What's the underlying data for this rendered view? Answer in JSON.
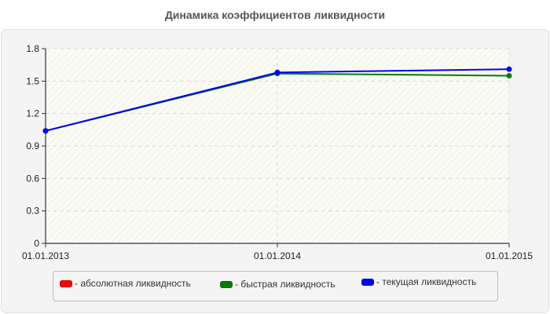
{
  "chart_data": {
    "type": "line",
    "title": "Динамика коэффициентов ликвидности",
    "xlabel": "",
    "ylabel": "",
    "categories": [
      "01.01.2013",
      "01.01.2014",
      "01.01.2015"
    ],
    "yticks": [
      "0",
      "0.3",
      "0.6",
      "0.9",
      "1.2",
      "1.5",
      "1.8"
    ],
    "ylim": [
      0,
      1.8
    ],
    "grid": true,
    "legend_position": "bottom",
    "series": [
      {
        "name": "абсолютная ликвидность",
        "color": "#ff0000",
        "values": [
          null,
          null,
          null
        ]
      },
      {
        "name": "быстрая ликвидность",
        "color": "#008000",
        "values": [
          1.04,
          1.57,
          1.55
        ]
      },
      {
        "name": "текущая ликвидность",
        "color": "#0000ff",
        "values": [
          1.04,
          1.58,
          1.61
        ]
      }
    ]
  },
  "legend": {
    "items": [
      {
        "label": "- абсолютная ликвидность",
        "color": "#ff0000"
      },
      {
        "label": "- быстрая ликвидность",
        "color": "#008000"
      },
      {
        "label": "- текущая ликвидность",
        "color": "#0000ff"
      }
    ]
  }
}
